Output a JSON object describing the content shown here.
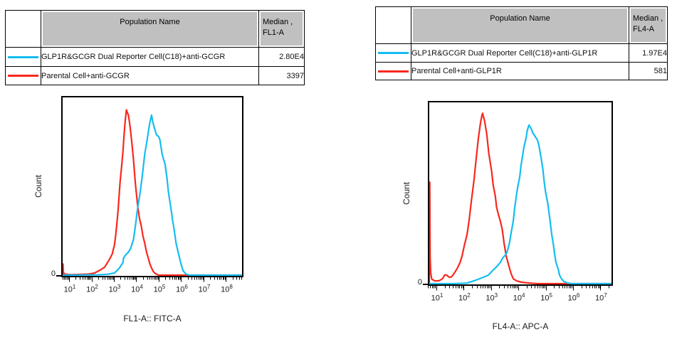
{
  "colors": {
    "cyan_series": "#14BDF0",
    "red_series": "#F8281E",
    "table_header_bg": "#C0C0C0",
    "border": "#000000"
  },
  "panels": [
    {
      "table": {
        "population_header": "Population Name",
        "median_header_line1": "Median ,",
        "median_header_line2": "FL1-A",
        "rows": [
          {
            "swatch_color": "#14BDF0",
            "population": "GLP1R&GCGR Dual Reporter Cell(C18)+anti-GCGR",
            "median": "2.80E4"
          },
          {
            "swatch_color": "#F8281E",
            "population": "Parental Cell+anti-GCGR",
            "median": "3397"
          }
        ]
      },
      "chart": {
        "ylabel": "Count",
        "y_zero": "0",
        "xlabel": "FL1-A:: FITC-A"
      }
    },
    {
      "table": {
        "population_header": "Population Name",
        "median_header_line1": "Median ,",
        "median_header_line2": "FL4-A",
        "rows": [
          {
            "swatch_color": "#14BDF0",
            "population": "GLP1R&GCGR Dual Reporter Cell(C18)+anti-GLP1R",
            "median": "1.97E4"
          },
          {
            "swatch_color": "#F8281E",
            "population": "Parental Cell+anti-GLP1R",
            "median": "581"
          }
        ]
      },
      "chart": {
        "ylabel": "Count",
        "y_zero": "0",
        "xlabel": "FL4-A:: APC-A"
      }
    }
  ],
  "chart_data": [
    {
      "type": "line",
      "subtype": "flow-cytometry-histogram",
      "title": "",
      "xlabel": "FL1-A:: FITC-A",
      "ylabel": "Count",
      "x_scale": "log10",
      "x_units": "log10(FL1-A fluorescence intensity)",
      "y_units": "relative_count_fraction",
      "x_range_log": [
        0.65,
        8.78
      ],
      "x_tick_exponents": [
        1,
        2,
        3,
        4,
        5,
        6,
        7,
        8
      ],
      "tick_base": "10",
      "y_axis_labels": [
        "0"
      ],
      "grid": false,
      "legend_position": "table-above",
      "series": [
        {
          "name": "GLP1R&GCGR Dual Reporter Cell(C18)+anti-GCGR",
          "color": "#14BDF0",
          "median_value": "2.80E4",
          "points": [
            [
              0.65,
              0
            ],
            [
              2.3,
              0.002
            ],
            [
              2.68,
              0.005
            ],
            [
              3.0,
              0.012
            ],
            [
              3.22,
              0.04
            ],
            [
              3.38,
              0.07
            ],
            [
              3.41,
              0.095
            ],
            [
              3.48,
              0.11
            ],
            [
              3.63,
              0.13
            ],
            [
              3.73,
              0.15
            ],
            [
              3.86,
              0.2
            ],
            [
              3.95,
              0.28
            ],
            [
              4.05,
              0.38
            ],
            [
              4.17,
              0.47
            ],
            [
              4.27,
              0.57
            ],
            [
              4.37,
              0.68
            ],
            [
              4.49,
              0.77
            ],
            [
              4.59,
              0.85
            ],
            [
              4.65,
              0.885
            ],
            [
              4.68,
              0.9
            ],
            [
              4.72,
              0.87
            ],
            [
              4.78,
              0.84
            ],
            [
              4.84,
              0.815
            ],
            [
              4.9,
              0.79
            ],
            [
              5.0,
              0.78
            ],
            [
              5.06,
              0.76
            ],
            [
              5.16,
              0.68
            ],
            [
              5.29,
              0.625
            ],
            [
              5.38,
              0.545
            ],
            [
              5.44,
              0.47
            ],
            [
              5.54,
              0.39
            ],
            [
              5.63,
              0.31
            ],
            [
              5.7,
              0.26
            ],
            [
              5.79,
              0.18
            ],
            [
              5.92,
              0.11
            ],
            [
              6.02,
              0.06
            ],
            [
              6.11,
              0.025
            ],
            [
              6.24,
              0.006
            ],
            [
              6.4,
              0
            ],
            [
              8.78,
              0
            ]
          ]
        },
        {
          "name": "Parental Cell+anti-GCGR",
          "color": "#F8281E",
          "median_value": "3397",
          "points": [
            [
              0.65,
              0
            ],
            [
              0.655,
              0.05
            ],
            [
              0.665,
              0.063
            ],
            [
              0.68,
              0.02
            ],
            [
              0.72,
              0.006
            ],
            [
              1.0,
              0.003
            ],
            [
              1.4,
              0.004
            ],
            [
              1.83,
              0.006
            ],
            [
              2.1,
              0.012
            ],
            [
              2.37,
              0.03
            ],
            [
              2.55,
              0.045
            ],
            [
              2.68,
              0.07
            ],
            [
              2.82,
              0.1
            ],
            [
              2.9,
              0.12
            ],
            [
              3.0,
              0.17
            ],
            [
              3.06,
              0.23
            ],
            [
              3.16,
              0.36
            ],
            [
              3.25,
              0.52
            ],
            [
              3.32,
              0.61
            ],
            [
              3.38,
              0.69
            ],
            [
              3.44,
              0.8
            ],
            [
              3.48,
              0.86
            ],
            [
              3.52,
              0.91
            ],
            [
              3.54,
              0.93
            ],
            [
              3.58,
              0.915
            ],
            [
              3.63,
              0.9
            ],
            [
              3.68,
              0.86
            ],
            [
              3.73,
              0.81
            ],
            [
              3.8,
              0.73
            ],
            [
              3.86,
              0.65
            ],
            [
              3.95,
              0.51
            ],
            [
              4.05,
              0.39
            ],
            [
              4.13,
              0.32
            ],
            [
              4.21,
              0.28
            ],
            [
              4.29,
              0.22
            ],
            [
              4.37,
              0.18
            ],
            [
              4.45,
              0.13
            ],
            [
              4.52,
              0.1
            ],
            [
              4.6,
              0.065
            ],
            [
              4.68,
              0.04
            ],
            [
              4.76,
              0.02
            ],
            [
              4.84,
              0.01
            ],
            [
              4.92,
              0.004
            ],
            [
              5.0,
              0
            ],
            [
              8.78,
              0
            ]
          ]
        }
      ]
    },
    {
      "type": "line",
      "subtype": "flow-cytometry-histogram",
      "title": "",
      "xlabel": "FL4-A:: APC-A",
      "ylabel": "Count",
      "x_scale": "log10",
      "x_units": "log10(FL4-A fluorescence intensity)",
      "y_units": "relative_count_fraction",
      "x_range_log": [
        0.6875,
        7.46
      ],
      "x_tick_exponents": [
        1,
        2,
        3,
        4,
        5,
        6,
        7
      ],
      "tick_base": "10",
      "y_axis_labels": [
        "0"
      ],
      "grid": false,
      "legend_position": "table-above",
      "series": [
        {
          "name": "GLP1R&GCGR Dual Reporter Cell(C18)+anti-GLP1R",
          "color": "#14BDF0",
          "median_value": "1.97E4",
          "points": [
            [
              0.69,
              0
            ],
            [
              1.5,
              0
            ],
            [
              2.09,
              0.003
            ],
            [
              2.43,
              0.02
            ],
            [
              2.69,
              0.035
            ],
            [
              2.88,
              0.047
            ],
            [
              3.03,
              0.07
            ],
            [
              3.21,
              0.097
            ],
            [
              3.34,
              0.12
            ],
            [
              3.42,
              0.143
            ],
            [
              3.53,
              0.16
            ],
            [
              3.58,
              0.175
            ],
            [
              3.66,
              0.22
            ],
            [
              3.73,
              0.28
            ],
            [
              3.81,
              0.345
            ],
            [
              3.86,
              0.415
            ],
            [
              3.92,
              0.48
            ],
            [
              3.97,
              0.53
            ],
            [
              4.05,
              0.59
            ],
            [
              4.1,
              0.655
            ],
            [
              4.15,
              0.7
            ],
            [
              4.2,
              0.75
            ],
            [
              4.28,
              0.8
            ],
            [
              4.33,
              0.845
            ],
            [
              4.39,
              0.875
            ],
            [
              4.44,
              0.865
            ],
            [
              4.49,
              0.85
            ],
            [
              4.54,
              0.83
            ],
            [
              4.59,
              0.82
            ],
            [
              4.65,
              0.805
            ],
            [
              4.7,
              0.795
            ],
            [
              4.75,
              0.77
            ],
            [
              4.8,
              0.73
            ],
            [
              4.85,
              0.69
            ],
            [
              4.91,
              0.63
            ],
            [
              4.96,
              0.56
            ],
            [
              5.01,
              0.505
            ],
            [
              5.09,
              0.445
            ],
            [
              5.14,
              0.39
            ],
            [
              5.19,
              0.33
            ],
            [
              5.24,
              0.27
            ],
            [
              5.3,
              0.215
            ],
            [
              5.35,
              0.16
            ],
            [
              5.4,
              0.115
            ],
            [
              5.48,
              0.08
            ],
            [
              5.53,
              0.047
            ],
            [
              5.61,
              0.025
            ],
            [
              5.69,
              0.012
            ],
            [
              5.82,
              0.004
            ],
            [
              6.0,
              0
            ],
            [
              7.46,
              0
            ]
          ]
        },
        {
          "name": "Parental Cell+anti-GLP1R",
          "color": "#F8281E",
          "median_value": "581",
          "points": [
            [
              0.6875,
              0
            ],
            [
              0.695,
              0.35
            ],
            [
              0.705,
              0.56
            ],
            [
              0.72,
              0.15
            ],
            [
              0.74,
              0.06
            ],
            [
              0.78,
              0.025
            ],
            [
              0.9,
              0.015
            ],
            [
              1.05,
              0.016
            ],
            [
              1.18,
              0.027
            ],
            [
              1.26,
              0.048
            ],
            [
              1.33,
              0.048
            ],
            [
              1.42,
              0.036
            ],
            [
              1.5,
              0.036
            ],
            [
              1.58,
              0.05
            ],
            [
              1.65,
              0.066
            ],
            [
              1.73,
              0.085
            ],
            [
              1.83,
              0.116
            ],
            [
              1.91,
              0.155
            ],
            [
              1.99,
              0.21
            ],
            [
              2.09,
              0.27
            ],
            [
              2.17,
              0.35
            ],
            [
              2.25,
              0.455
            ],
            [
              2.35,
              0.57
            ],
            [
              2.43,
              0.69
            ],
            [
              2.51,
              0.8
            ],
            [
              2.59,
              0.885
            ],
            [
              2.64,
              0.925
            ],
            [
              2.67,
              0.94
            ],
            [
              2.71,
              0.915
            ],
            [
              2.74,
              0.9
            ],
            [
              2.82,
              0.83
            ],
            [
              2.9,
              0.72
            ],
            [
              3.01,
              0.615
            ],
            [
              3.06,
              0.545
            ],
            [
              3.14,
              0.485
            ],
            [
              3.19,
              0.42
            ],
            [
              3.27,
              0.375
            ],
            [
              3.32,
              0.35
            ],
            [
              3.4,
              0.3
            ],
            [
              3.47,
              0.22
            ],
            [
              3.55,
              0.15
            ],
            [
              3.66,
              0.09
            ],
            [
              3.73,
              0.055
            ],
            [
              3.81,
              0.027
            ],
            [
              3.94,
              0.015
            ],
            [
              4.13,
              0.008
            ],
            [
              4.44,
              0.003
            ],
            [
              4.7,
              0
            ],
            [
              7.46,
              0
            ]
          ]
        }
      ]
    }
  ]
}
